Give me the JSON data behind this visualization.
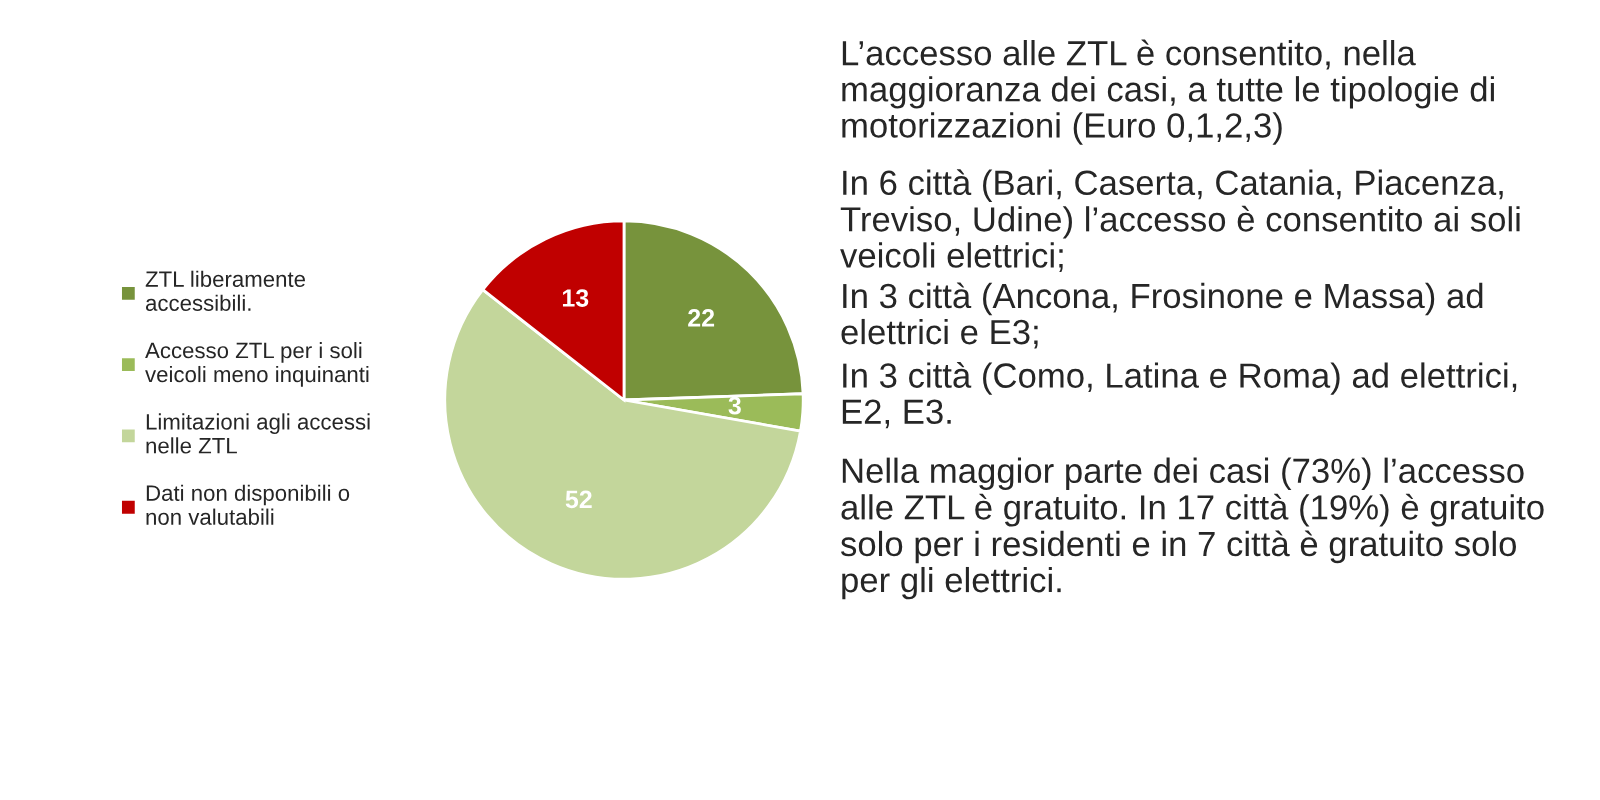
{
  "chart_data": {
    "type": "pie",
    "categories": [
      "ZTL liberamente accessibili.",
      "Accesso ZTL per i soli veicoli meno inquinanti",
      "Limitazioni agli accessi nelle ZTL",
      "Dati non disponibili o non valutabili"
    ],
    "values": [
      22,
      3,
      52,
      13
    ],
    "colors": [
      "#77933c",
      "#9bbb59",
      "#c3d69b",
      "#c00000"
    ],
    "data_labels": true,
    "legend": "left",
    "annotations": [
      "L’accesso alle ZTL è consentito, nella maggioranza dei casi, a tutte le tipologie di motorizzazioni (Euro 0,1,2,3)",
      "In 6 città (Bari, Caserta, Catania, Piacenza, Treviso, Udine) l’accesso è consentito ai soli veicoli elettrici;",
      "In 3 città (Ancona, Frosinone e Massa) ad elettrici e E3;",
      "In 3 città (Como, Latina e Roma) ad elettrici, E2, E3.",
      "Nella maggior parte dei casi (73%) l’accesso alle ZTL è gratuito. In 17 città (19%) è gratuito solo per i residenti e in 7 città è gratuito solo per gli elettrici."
    ]
  }
}
